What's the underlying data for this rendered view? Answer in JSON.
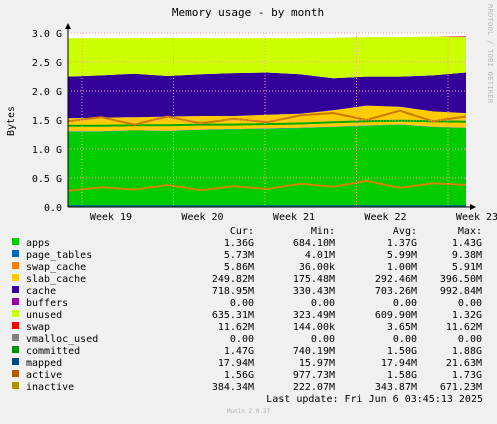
{
  "chart_data": {
    "type": "area",
    "title": "Memory usage - by month",
    "ylabel": "Bytes",
    "xlabel": "",
    "ylim": [
      0,
      3.0
    ],
    "y_unit": "G",
    "y_ticks": [
      "0.0",
      "0.5 G",
      "1.0 G",
      "1.5 G",
      "2.0 G",
      "2.5 G",
      "3.0 G"
    ],
    "x_ticks": [
      "Week 19",
      "Week 20",
      "Week 21",
      "Week 22",
      "Week 23"
    ],
    "grid": true,
    "stacked_series": [
      {
        "name": "apps",
        "color": "#00cc00",
        "values": [
          1.3,
          1.3,
          1.32,
          1.31,
          1.33,
          1.34,
          1.35,
          1.36,
          1.38,
          1.4,
          1.42,
          1.38,
          1.36
        ]
      },
      {
        "name": "page_tables",
        "color": "#0066b3",
        "values": [
          0.005,
          0.005,
          0.005,
          0.005,
          0.005,
          0.005,
          0.005,
          0.005,
          0.005,
          0.005,
          0.005,
          0.005,
          0.005
        ]
      },
      {
        "name": "swap_cache",
        "color": "#ff8000",
        "values": [
          0.004,
          0.004,
          0.004,
          0.004,
          0.004,
          0.004,
          0.004,
          0.004,
          0.004,
          0.004,
          0.004,
          0.004,
          0.004
        ]
      },
      {
        "name": "slab_cache",
        "color": "#ffcc00",
        "values": [
          0.22,
          0.23,
          0.22,
          0.24,
          0.23,
          0.22,
          0.23,
          0.24,
          0.28,
          0.34,
          0.3,
          0.26,
          0.25
        ]
      },
      {
        "name": "cache",
        "color": "#330099",
        "values": [
          0.72,
          0.73,
          0.75,
          0.7,
          0.72,
          0.74,
          0.73,
          0.68,
          0.55,
          0.5,
          0.52,
          0.62,
          0.7
        ]
      },
      {
        "name": "buffers",
        "color": "#990099",
        "values": [
          0,
          0,
          0,
          0,
          0,
          0,
          0,
          0,
          0,
          0,
          0,
          0,
          0
        ]
      },
      {
        "name": "unused",
        "color": "#ccff00",
        "values": [
          0.66,
          0.64,
          0.61,
          0.66,
          0.62,
          0.6,
          0.59,
          0.62,
          0.7,
          0.68,
          0.68,
          0.67,
          0.61
        ]
      },
      {
        "name": "swap",
        "color": "#ff0000",
        "values": [
          0,
          0,
          0,
          0,
          0,
          0,
          0,
          0,
          0,
          0,
          0,
          0,
          0.012
        ]
      }
    ],
    "line_series": [
      {
        "name": "committed",
        "color": "#00aa00",
        "values": [
          1.4,
          1.4,
          1.41,
          1.41,
          1.42,
          1.42,
          1.43,
          1.44,
          1.46,
          1.48,
          1.49,
          1.48,
          1.47
        ]
      },
      {
        "name": "mapped",
        "color": "#007777",
        "values": [
          0.018,
          0.018,
          0.018,
          0.018,
          0.018,
          0.018,
          0.018,
          0.018,
          0.018,
          0.018,
          0.018,
          0.018,
          0.018
        ]
      },
      {
        "name": "active",
        "color": "#cc7a00",
        "values": [
          1.48,
          1.55,
          1.42,
          1.56,
          1.44,
          1.52,
          1.46,
          1.58,
          1.62,
          1.5,
          1.66,
          1.48,
          1.56
        ]
      },
      {
        "name": "inactive",
        "color": "#cc8800",
        "values": [
          0.28,
          0.34,
          0.3,
          0.38,
          0.29,
          0.36,
          0.31,
          0.4,
          0.35,
          0.45,
          0.33,
          0.41,
          0.38
        ]
      }
    ],
    "legend": {
      "headers": [
        "Cur:",
        "Min:",
        "Avg:",
        "Max:"
      ],
      "rows": [
        {
          "name": "apps",
          "color": "#00cc00",
          "cur": "1.36G",
          "min": "684.10M",
          "avg": "1.37G",
          "max": "1.43G"
        },
        {
          "name": "page_tables",
          "color": "#0066b3",
          "cur": "5.73M",
          "min": "4.01M",
          "avg": "5.99M",
          "max": "9.38M"
        },
        {
          "name": "swap_cache",
          "color": "#ff8000",
          "cur": "5.86M",
          "min": "36.00k",
          "avg": "1.00M",
          "max": "5.91M"
        },
        {
          "name": "slab_cache",
          "color": "#ffcc00",
          "cur": "249.82M",
          "min": "175.48M",
          "avg": "292.46M",
          "max": "396.50M"
        },
        {
          "name": "cache",
          "color": "#330099",
          "cur": "718.95M",
          "min": "330.43M",
          "avg": "703.26M",
          "max": "992.84M"
        },
        {
          "name": "buffers",
          "color": "#990099",
          "cur": "0.00",
          "min": "0.00",
          "avg": "0.00",
          "max": "0.00"
        },
        {
          "name": "unused",
          "color": "#ccff00",
          "cur": "635.31M",
          "min": "323.49M",
          "avg": "609.90M",
          "max": "1.32G"
        },
        {
          "name": "swap",
          "color": "#ff0000",
          "cur": "11.62M",
          "min": "144.00k",
          "avg": "3.65M",
          "max": "11.62M"
        },
        {
          "name": "vmalloc_used",
          "color": "#808080",
          "cur": "0.00",
          "min": "0.00",
          "avg": "0.00",
          "max": "0.00"
        },
        {
          "name": "committed",
          "color": "#008f00",
          "cur": "1.47G",
          "min": "740.19M",
          "avg": "1.50G",
          "max": "1.88G"
        },
        {
          "name": "mapped",
          "color": "#00487d",
          "cur": "17.94M",
          "min": "15.97M",
          "avg": "17.94M",
          "max": "21.63M"
        },
        {
          "name": "active",
          "color": "#b35a00",
          "cur": "1.56G",
          "min": "977.73M",
          "avg": "1.58G",
          "max": "1.73G"
        },
        {
          "name": "inactive",
          "color": "#b38f00",
          "cur": "384.34M",
          "min": "222.07M",
          "avg": "343.87M",
          "max": "671.23M"
        }
      ]
    },
    "last_update": "Last update: Fri Jun  6 03:45:13 2025",
    "footer": "Munin 2.0.37",
    "vendor": "RRDTOOL / TOBI OETIKER"
  }
}
